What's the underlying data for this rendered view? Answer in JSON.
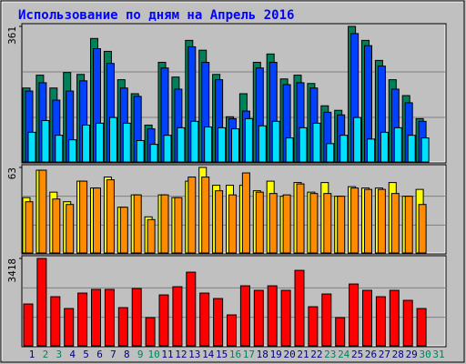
{
  "title": "Использование по дням на Апрель 2016",
  "chart_data": [
    {
      "type": "bar",
      "ylim": [
        0,
        361
      ],
      "yticks": [
        361
      ],
      "series": [
        {
          "color": "#00805a",
          "values": [
            198,
            232,
            198,
            239,
            234,
            329,
            295,
            220,
            183,
            100,
            266,
            227,
            324,
            298,
            234,
            122,
            183,
            266,
            288,
            222,
            232,
            210,
            151,
            139,
            361,
            324,
            271,
            220,
            178,
            117,
            null
          ]
        },
        {
          "color": "#0040ff",
          "values": [
            190,
            212,
            166,
            190,
            217,
            302,
            263,
            198,
            176,
            90,
            251,
            195,
            307,
            266,
            220,
            117,
            137,
            251,
            266,
            207,
            212,
            198,
            134,
            127,
            342,
            310,
            256,
            195,
            159,
            110,
            null
          ]
        },
        {
          "color": "#00e0ff",
          "values": [
            81,
            112,
            73,
            61,
            100,
            105,
            120,
            105,
            59,
            49,
            73,
            93,
            110,
            95,
            93,
            90,
            117,
            98,
            110,
            66,
            93,
            105,
            51,
            73,
            120,
            63,
            81,
            93,
            73,
            66,
            null
          ]
        }
      ]
    },
    {
      "type": "bar",
      "ylim": [
        0,
        63
      ],
      "yticks": [
        63
      ],
      "series": [
        {
          "color": "#ffff00",
          "values": [
            41,
            61,
            45,
            38,
            53,
            48,
            56,
            34,
            43,
            27,
            43,
            41,
            53,
            63,
            50,
            50,
            50,
            46,
            53,
            42,
            52,
            45,
            52,
            42,
            49,
            48,
            48,
            52,
            42,
            47,
            null
          ]
        },
        {
          "color": "#ff8c00",
          "values": [
            38,
            61,
            40,
            36,
            53,
            48,
            54,
            34,
            43,
            25,
            43,
            41,
            56,
            56,
            46,
            43,
            59,
            45,
            44,
            43,
            51,
            44,
            44,
            42,
            48,
            47,
            47,
            44,
            42,
            36,
            null
          ]
        }
      ]
    },
    {
      "type": "bar",
      "ylim": [
        0,
        3418
      ],
      "yticks": [
        3418
      ],
      "categories": [
        "1",
        "2",
        "3",
        "4",
        "5",
        "6",
        "7",
        "8",
        "9",
        "10",
        "11",
        "12",
        "13",
        "14",
        "15",
        "16",
        "17",
        "18",
        "19",
        "20",
        "21",
        "22",
        "23",
        "24",
        "25",
        "26",
        "27",
        "28",
        "29",
        "30",
        "31"
      ],
      "category_colors": [
        "#000080",
        "#008060",
        "#008060",
        "#000080",
        "#000080",
        "#000080",
        "#000080",
        "#000080",
        "#008060",
        "#008060",
        "#000080",
        "#000080",
        "#000080",
        "#000080",
        "#000080",
        "#008060",
        "#008060",
        "#000080",
        "#000080",
        "#000080",
        "#000080",
        "#000080",
        "#008060",
        "#008060",
        "#000080",
        "#000080",
        "#000080",
        "#000080",
        "#000080",
        "#008060",
        "#008060"
      ],
      "series": [
        {
          "color": "#ff0000",
          "values": [
            1655,
            3418,
            1937,
            1479,
            2077,
            2218,
            2218,
            1514,
            2253,
            1127,
            2007,
            2324,
            2887,
            2077,
            1866,
            1233,
            2359,
            2183,
            2359,
            2183,
            2957,
            1549,
            2042,
            1127,
            2429,
            2183,
            1937,
            2183,
            1796,
            1479,
            null
          ]
        }
      ]
    }
  ]
}
